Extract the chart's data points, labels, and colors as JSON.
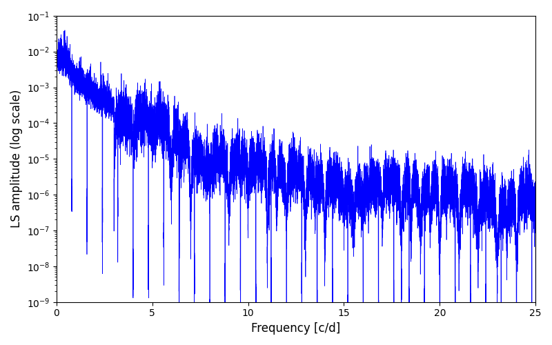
{
  "title": "",
  "xlabel": "Frequency [c/d]",
  "ylabel": "LS amplitude (log scale)",
  "line_color": "blue",
  "line_width": 0.5,
  "xlim": [
    0,
    25
  ],
  "ylim": [
    1e-09,
    0.1
  ],
  "yscale": "log",
  "figsize": [
    8.0,
    5.0
  ],
  "dpi": 100,
  "freq_max": 25.0,
  "n_points": 20000,
  "seed": 7,
  "background_color": "#ffffff"
}
